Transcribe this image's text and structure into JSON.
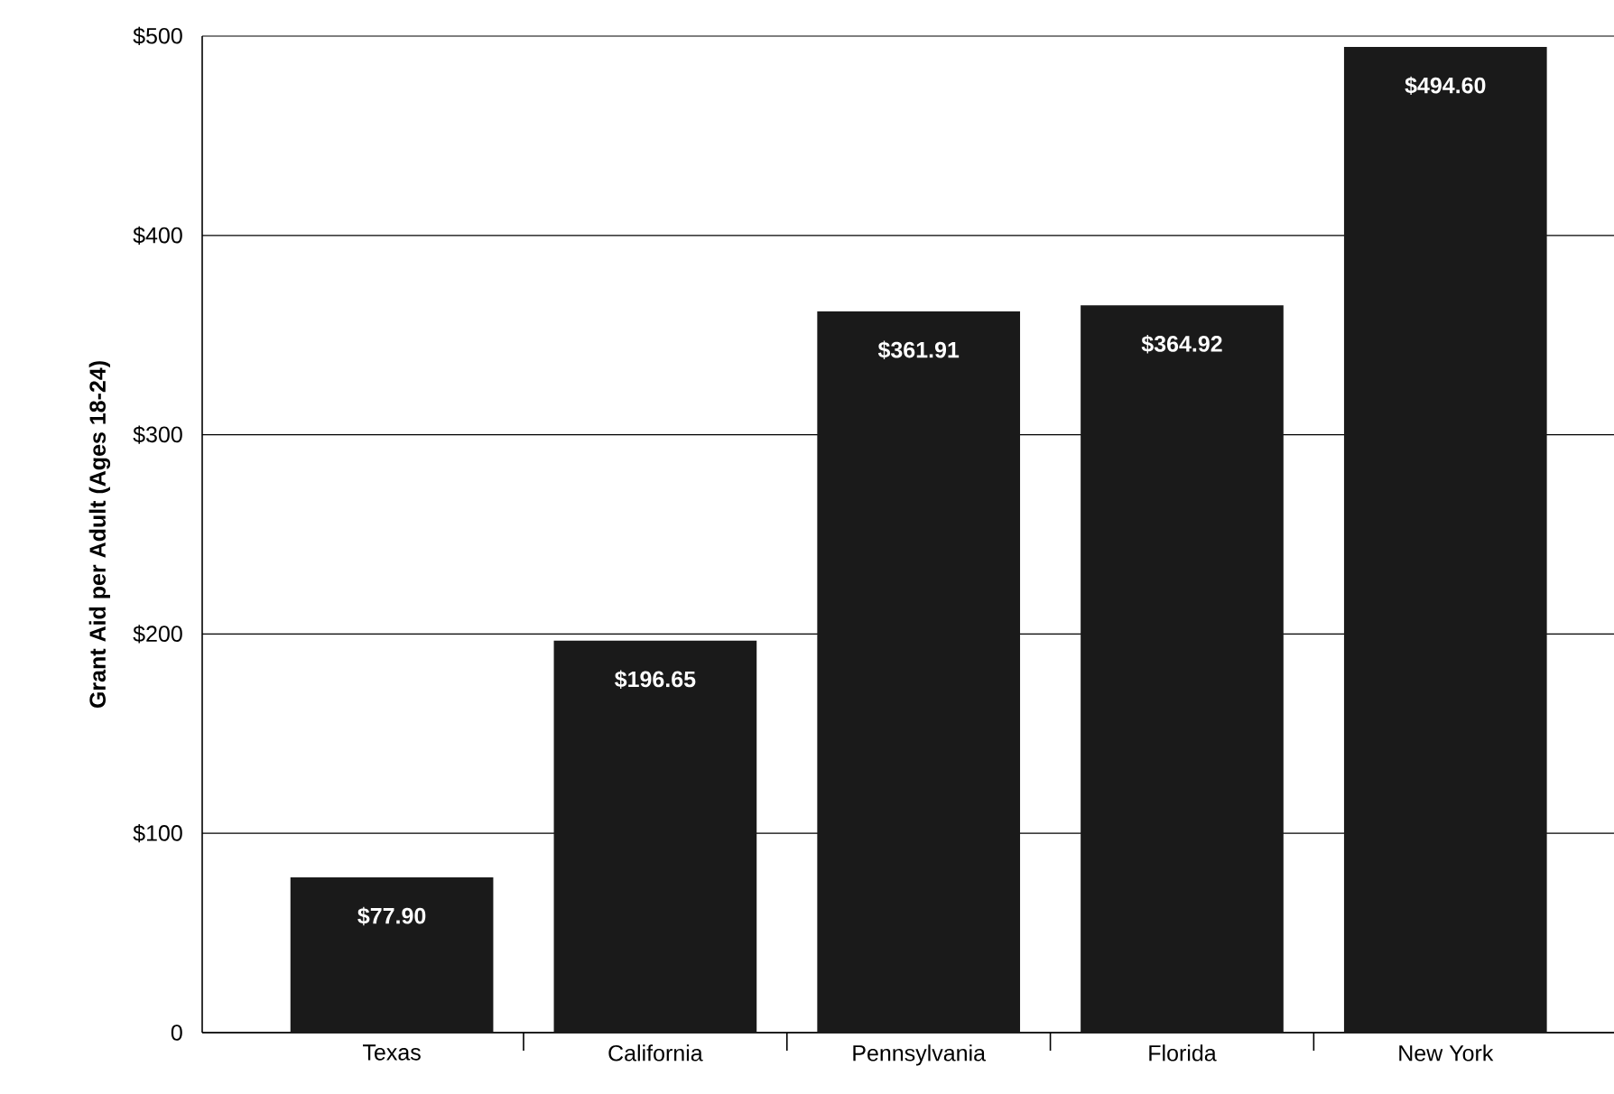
{
  "chart_data": {
    "type": "bar",
    "ylabel": "Grant Aid per Adult (Ages 18-24)",
    "categories": [
      "Texas",
      "California",
      "Pennsylvania",
      "Florida",
      "New York"
    ],
    "values": [
      77.9,
      196.65,
      361.91,
      364.92,
      494.6
    ],
    "value_labels": [
      "$77.90",
      "$196.65",
      "$361.91",
      "$364.92",
      "$494.60"
    ],
    "color": "#1a1a1a",
    "ylim": [
      0,
      500
    ],
    "yticks": [
      0,
      {
        "value": 100,
        "label": "$100"
      },
      {
        "value": 200,
        "label": "$200"
      },
      {
        "value": 300,
        "label": "$300"
      },
      {
        "value": 400,
        "label": "$400"
      },
      {
        "value": 500,
        "label": "$500"
      }
    ],
    "grid": "y"
  }
}
